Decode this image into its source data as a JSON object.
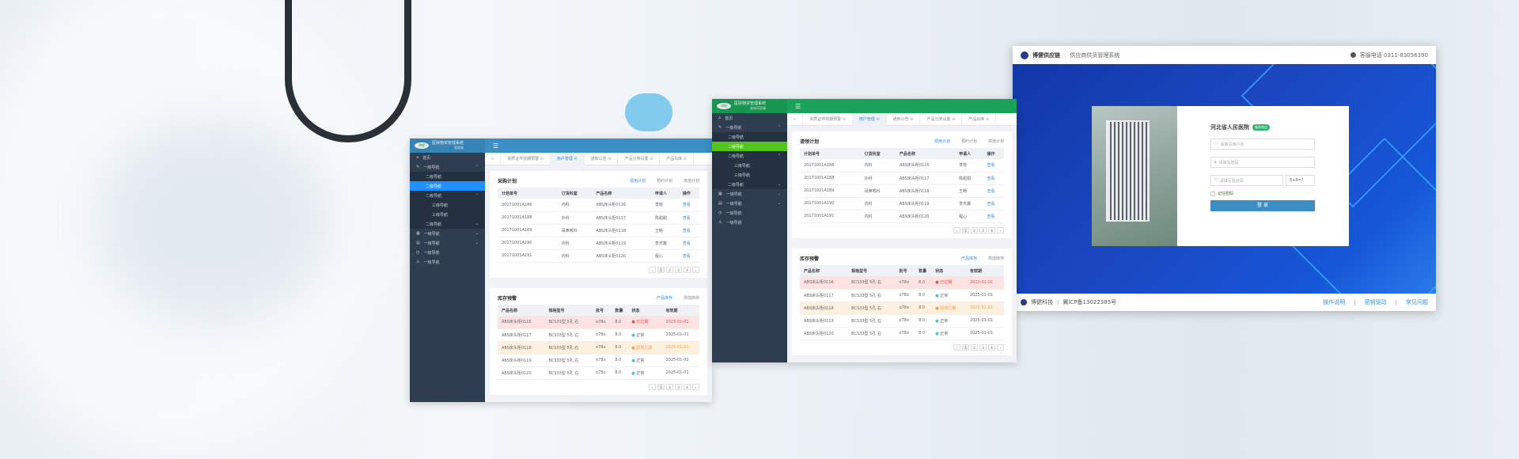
{
  "colors": {
    "panel_a_header": "#3a8fc4",
    "panel_b_header": "#1aa358",
    "active_a": "#1e90ff",
    "active_b": "#52c41a",
    "sidebar": "#2e3d4f",
    "login_blue": "#1b49c4"
  },
  "panels": [
    {
      "id": "a",
      "header_color": "#3a8fc4",
      "active_color": "#1e90ff",
      "logo": "博健",
      "title": "医院物资管理系统",
      "subtitle": "管理端",
      "menu_icon": "menu-icon",
      "sidebar": [
        {
          "label": "首页",
          "icon": "home-icon",
          "level": 1
        },
        {
          "label": "一级导航",
          "icon": "edit-icon",
          "level": 1,
          "chevron": "up"
        },
        {
          "label": "二级导航",
          "level": 2
        },
        {
          "label": "二级导航",
          "level": 2,
          "active": true
        },
        {
          "label": "二级导航",
          "level": 2,
          "chevron": "up"
        },
        {
          "label": "三级导航",
          "level": 3
        },
        {
          "label": "三级导航",
          "level": 3
        },
        {
          "label": "二级导航",
          "level": 2,
          "chevron": "down"
        },
        {
          "label": "一级导航",
          "icon": "grid-icon",
          "level": 1,
          "chevron": "down"
        },
        {
          "label": "一级导航",
          "icon": "table-icon",
          "level": 1,
          "chevron": "down"
        },
        {
          "label": "一级导航",
          "icon": "clock-icon",
          "level": 1
        },
        {
          "label": "一级导航",
          "icon": "warning-icon",
          "level": 1
        }
      ],
      "tabs": [
        "资质证件效期预警",
        "用户管理",
        "通知公告",
        "产品分类设置",
        "产品出库"
      ],
      "active_tab": 1,
      "plan": {
        "title": "采购计划",
        "links": [
          "领用计划",
          "预约计划",
          "高值计划"
        ],
        "headers": [
          "计划单号",
          "订货科室",
          "产品名称",
          "申请人",
          "操作"
        ],
        "rows": [
          [
            "20171001A186",
            "内科",
            "ABS床头柜0116",
            "李枝",
            "查看"
          ],
          [
            "20171001A188",
            "外科",
            "ABS床头柜0117",
            "陈甜甜",
            "查看"
          ],
          [
            "20171001A189",
            "耳鼻喉科",
            "ABS床头柜0118",
            "王畅",
            "查看"
          ],
          [
            "20171001A190",
            "内科",
            "ABS床头柜0119",
            "李天翼",
            "查看"
          ],
          [
            "20171001A191",
            "内科",
            "ABS床头柜0120",
            "程心",
            "查看"
          ]
        ]
      },
      "stock": {
        "title": "库存预警",
        "links": [
          "产品库存",
          "高值库存"
        ],
        "headers": [
          "产品名称",
          "规格型号",
          "批号",
          "数量",
          "状态",
          "有效期"
        ],
        "rows": [
          [
            "ABS床头柜0116",
            "BCS33型 5孔 右",
            "o78o",
            "8.0",
            "已过期",
            "2023-01-01"
          ],
          [
            "ABS床头柜0117",
            "BCS33型 5孔 右",
            "o78o",
            "8.0",
            "正常",
            "2025-01-01"
          ],
          [
            "ABS床头柜0118",
            "BCS33型 5孔 右",
            "o78o",
            "8.0",
            "即将过期",
            "2025-01-01"
          ],
          [
            "ABS床头柜0119",
            "BCS33型 5孔 右",
            "o78o",
            "8.0",
            "正常",
            "2025-01-01"
          ],
          [
            "ABS床头柜0120",
            "BCS33型 5孔 右",
            "o78o",
            "8.0",
            "正常",
            "2025-01-01"
          ]
        ]
      },
      "pager": [
        "‹",
        "1",
        "2",
        "3",
        "4",
        "›"
      ]
    },
    {
      "id": "b",
      "header_color": "#1aa358",
      "active_color": "#52c41a",
      "logo": "博健",
      "title": "医院物资管理系统",
      "subtitle": "临床科室端",
      "menu_icon": "menu-icon",
      "sidebar": [
        {
          "label": "首页",
          "icon": "home-icon",
          "level": 1
        },
        {
          "label": "一级导航",
          "icon": "edit-icon",
          "level": 1,
          "chevron": "up"
        },
        {
          "label": "二级导航",
          "level": 2
        },
        {
          "label": "二级导航",
          "level": 2,
          "active": true
        },
        {
          "label": "二级导航",
          "level": 2,
          "chevron": "up"
        },
        {
          "label": "三级导航",
          "level": 3
        },
        {
          "label": "三级导航",
          "level": 3
        },
        {
          "label": "二级导航",
          "level": 2,
          "chevron": "down"
        },
        {
          "label": "一级导航",
          "icon": "grid-icon",
          "level": 1,
          "chevron": "down"
        },
        {
          "label": "一级导航",
          "icon": "table-icon",
          "level": 1,
          "chevron": "down"
        },
        {
          "label": "一级导航",
          "icon": "clock-icon",
          "level": 1
        },
        {
          "label": "一级导航",
          "icon": "warning-icon",
          "level": 1
        }
      ],
      "tabs": [
        "资质证件效期预警",
        "用户管理",
        "通知公告",
        "产品分类设置",
        "产品出库"
      ],
      "active_tab": 1,
      "plan": {
        "title": "请领计划",
        "links": [
          "领用计划",
          "预约计划",
          "高值计划"
        ],
        "headers": [
          "计划单号",
          "订货科室",
          "产品名称",
          "申请人",
          "操作"
        ],
        "rows": [
          [
            "20171001A186",
            "内科",
            "ABS床头柜0116",
            "李枝",
            "查看"
          ],
          [
            "20171001A188",
            "外科",
            "ABS床头柜0117",
            "陈甜甜",
            "查看"
          ],
          [
            "20171001A189",
            "耳鼻喉科",
            "ABS床头柜0118",
            "王畅",
            "查看"
          ],
          [
            "20171001A190",
            "内科",
            "ABS床头柜0119",
            "李天翼",
            "查看"
          ],
          [
            "20171001A191",
            "内科",
            "ABS床头柜0120",
            "程心",
            "查看"
          ]
        ]
      },
      "stock": {
        "title": "库存预警",
        "links": [
          "产品库存",
          "高值库存"
        ],
        "headers": [
          "产品名称",
          "规格型号",
          "批号",
          "数量",
          "状态",
          "有效期"
        ],
        "rows": [
          [
            "ABS床头柜0116",
            "BCS33型 5孔 右",
            "o78o",
            "8.0",
            "已过期",
            "2023-01-01"
          ],
          [
            "ABS床头柜0117",
            "BCS33型 5孔 右",
            "o78o",
            "8.0",
            "正常",
            "2025-01-01"
          ],
          [
            "ABS床头柜0118",
            "BCS33型 5孔 右",
            "o78o",
            "8.0",
            "即将过期",
            "2025-01-01"
          ],
          [
            "ABS床头柜0119",
            "BCS33型 5孔 右",
            "o78o",
            "8.0",
            "正常",
            "2025-01-01"
          ],
          [
            "ABS床头柜0120",
            "BCS33型 5孔 右",
            "o78o",
            "8.0",
            "正常",
            "2025-01-01"
          ]
        ]
      },
      "pager": [
        "‹",
        "1",
        "2",
        "3",
        "4",
        "›"
      ]
    }
  ],
  "login": {
    "brand": "博健供应链",
    "system": "供应商供货管理系统",
    "phone": "客服电话 0311-83056390",
    "hospital": "河北省人民医院",
    "badge": "服务商品",
    "username_placeholder": "请填写用户名",
    "password_placeholder": "请填写密码",
    "captcha_placeholder": "请填写验证码",
    "captcha": "6+8=?",
    "remember": "记住密码",
    "submit": "登 录",
    "footer_company": "博健科技",
    "footer_icp": "冀ICP备13022385号",
    "footer_links": [
      "操作说明",
      "密钥驱动",
      "常见问题"
    ]
  }
}
